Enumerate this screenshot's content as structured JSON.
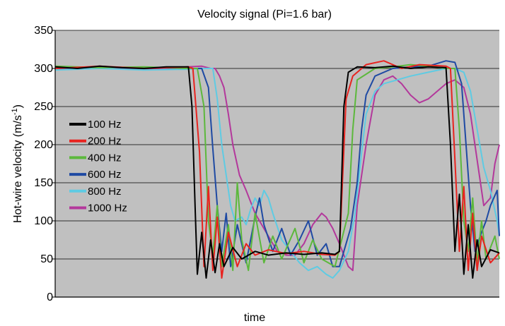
{
  "chart_data": {
    "type": "line",
    "title": "Velocity signal (Pi=1.6 bar)",
    "xlabel": "time",
    "ylabel": "Hot-wire velocity (m/s",
    "ylabel_sup": "-1",
    "ylabel_close": ")",
    "ylim": [
      0,
      350
    ],
    "xlim": [
      0,
      100
    ],
    "yticks": [
      "0",
      "50",
      "100",
      "150",
      "200",
      "250",
      "300",
      "350"
    ],
    "grid": true,
    "legend_position": "left",
    "series": [
      {
        "name": "100 Hz",
        "color": "#000000",
        "points": [
          [
            0,
            302
          ],
          [
            5,
            300
          ],
          [
            10,
            303
          ],
          [
            15,
            301
          ],
          [
            20,
            300
          ],
          [
            25,
            302
          ],
          [
            30,
            302
          ],
          [
            30.8,
            250
          ],
          [
            31.5,
            120
          ],
          [
            32,
            30
          ],
          [
            33,
            85
          ],
          [
            34,
            25
          ],
          [
            35,
            75
          ],
          [
            36,
            32
          ],
          [
            37,
            70
          ],
          [
            38,
            40
          ],
          [
            40,
            65
          ],
          [
            42,
            50
          ],
          [
            45,
            60
          ],
          [
            48,
            55
          ],
          [
            52,
            58
          ],
          [
            56,
            56
          ],
          [
            60,
            58
          ],
          [
            63,
            56
          ],
          [
            64,
            60
          ],
          [
            65,
            250
          ],
          [
            66,
            295
          ],
          [
            68,
            302
          ],
          [
            72,
            301
          ],
          [
            76,
            303
          ],
          [
            80,
            300
          ],
          [
            84,
            302
          ],
          [
            88,
            301
          ],
          [
            89,
            200
          ],
          [
            90,
            60
          ],
          [
            91,
            135
          ],
          [
            92,
            30
          ],
          [
            93,
            95
          ],
          [
            94,
            25
          ],
          [
            95,
            75
          ],
          [
            96,
            40
          ],
          [
            98,
            62
          ],
          [
            100,
            58
          ]
        ]
      },
      {
        "name": "200 Hz",
        "color": "#e8231f",
        "points": [
          [
            0,
            300
          ],
          [
            10,
            303
          ],
          [
            20,
            300
          ],
          [
            30,
            302
          ],
          [
            31,
            300
          ],
          [
            32.5,
            190
          ],
          [
            33.5,
            40
          ],
          [
            34.5,
            145
          ],
          [
            35.5,
            35
          ],
          [
            36.5,
            105
          ],
          [
            37.5,
            25
          ],
          [
            39,
            85
          ],
          [
            41,
            40
          ],
          [
            43,
            70
          ],
          [
            45,
            55
          ],
          [
            48,
            62
          ],
          [
            52,
            57
          ],
          [
            56,
            60
          ],
          [
            60,
            56
          ],
          [
            63,
            55
          ],
          [
            64,
            60
          ],
          [
            65.5,
            260
          ],
          [
            67,
            290
          ],
          [
            70,
            305
          ],
          [
            74,
            310
          ],
          [
            78,
            300
          ],
          [
            82,
            305
          ],
          [
            88,
            303
          ],
          [
            89,
            300
          ],
          [
            90,
            180
          ],
          [
            91,
            60
          ],
          [
            92,
            145
          ],
          [
            93,
            35
          ],
          [
            94,
            110
          ],
          [
            95,
            35
          ],
          [
            96,
            80
          ],
          [
            98,
            45
          ],
          [
            100,
            58
          ]
        ]
      },
      {
        "name": "400 Hz",
        "color": "#5cb83c",
        "points": [
          [
            0,
            303
          ],
          [
            10,
            301
          ],
          [
            20,
            302
          ],
          [
            30,
            300
          ],
          [
            32,
            300
          ],
          [
            33.5,
            250
          ],
          [
            34.5,
            100
          ],
          [
            35.5,
            55
          ],
          [
            36.5,
            120
          ],
          [
            37.5,
            40
          ],
          [
            39,
            95
          ],
          [
            40,
            35
          ],
          [
            41,
            150
          ],
          [
            42,
            75
          ],
          [
            43.5,
            35
          ],
          [
            45,
            110
          ],
          [
            47,
            45
          ],
          [
            49,
            80
          ],
          [
            51,
            50
          ],
          [
            54,
            90
          ],
          [
            56,
            45
          ],
          [
            58,
            75
          ],
          [
            60,
            50
          ],
          [
            63,
            40
          ],
          [
            66,
            110
          ],
          [
            67,
            220
          ],
          [
            68,
            285
          ],
          [
            72,
            300
          ],
          [
            76,
            302
          ],
          [
            80,
            305
          ],
          [
            84,
            303
          ],
          [
            88,
            300
          ],
          [
            90,
            300
          ],
          [
            91,
            220
          ],
          [
            92,
            100
          ],
          [
            93,
            60
          ],
          [
            94,
            130
          ],
          [
            95,
            45
          ],
          [
            96,
            100
          ],
          [
            97,
            50
          ],
          [
            99,
            80
          ],
          [
            100,
            50
          ]
        ]
      },
      {
        "name": "600 Hz",
        "color": "#1f4aa3",
        "points": [
          [
            0,
            300
          ],
          [
            10,
            302
          ],
          [
            20,
            301
          ],
          [
            30,
            300
          ],
          [
            33,
            300
          ],
          [
            34.5,
            275
          ],
          [
            35.5,
            195
          ],
          [
            36.5,
            120
          ],
          [
            37.5,
            60
          ],
          [
            38.5,
            110
          ],
          [
            39.5,
            40
          ],
          [
            41,
            95
          ],
          [
            43,
            45
          ],
          [
            45,
            105
          ],
          [
            46,
            130
          ],
          [
            47,
            95
          ],
          [
            49,
            60
          ],
          [
            51,
            90
          ],
          [
            53,
            55
          ],
          [
            55,
            75
          ],
          [
            57,
            100
          ],
          [
            59,
            55
          ],
          [
            61,
            70
          ],
          [
            62.5,
            40
          ],
          [
            64,
            40
          ],
          [
            66.5,
            90
          ],
          [
            68,
            150
          ],
          [
            69,
            220
          ],
          [
            70,
            265
          ],
          [
            72,
            290
          ],
          [
            76,
            300
          ],
          [
            80,
            302
          ],
          [
            84,
            303
          ],
          [
            88,
            310
          ],
          [
            90,
            308
          ],
          [
            91.5,
            280
          ],
          [
            92.5,
            200
          ],
          [
            93.5,
            120
          ],
          [
            94.5,
            60
          ],
          [
            96,
            85
          ],
          [
            97,
            100
          ],
          [
            98,
            120
          ],
          [
            99.5,
            140
          ],
          [
            100,
            80
          ]
        ]
      },
      {
        "name": "800 Hz",
        "color": "#5ecbe3",
        "points": [
          [
            0,
            298
          ],
          [
            10,
            300
          ],
          [
            20,
            298
          ],
          [
            30,
            299
          ],
          [
            34,
            300
          ],
          [
            35.5,
            300
          ],
          [
            36.5,
            260
          ],
          [
            37.5,
            200
          ],
          [
            38.5,
            160
          ],
          [
            39.5,
            120
          ],
          [
            40.5,
            100
          ],
          [
            42,
            105
          ],
          [
            43,
            95
          ],
          [
            44,
            115
          ],
          [
            45,
            130
          ],
          [
            46,
            120
          ],
          [
            47,
            140
          ],
          [
            48,
            130
          ],
          [
            49,
            110
          ],
          [
            51,
            75
          ],
          [
            53,
            60
          ],
          [
            55,
            45
          ],
          [
            57,
            35
          ],
          [
            59,
            40
          ],
          [
            61,
            30
          ],
          [
            62.5,
            25
          ],
          [
            64,
            35
          ],
          [
            66,
            60
          ],
          [
            67.5,
            110
          ],
          [
            69,
            190
          ],
          [
            70,
            240
          ],
          [
            72,
            270
          ],
          [
            74,
            280
          ],
          [
            77,
            285
          ],
          [
            80,
            290
          ],
          [
            84,
            295
          ],
          [
            88,
            300
          ],
          [
            90,
            300
          ],
          [
            92,
            295
          ],
          [
            93.5,
            270
          ],
          [
            95,
            220
          ],
          [
            96.5,
            170
          ],
          [
            98,
            140
          ],
          [
            99.5,
            100
          ],
          [
            100,
            80
          ]
        ]
      },
      {
        "name": "1000 Hz",
        "color": "#b3389b",
        "points": [
          [
            0,
            300
          ],
          [
            10,
            301
          ],
          [
            20,
            299
          ],
          [
            30,
            302
          ],
          [
            33,
            303
          ],
          [
            35,
            300
          ],
          [
            36,
            300
          ],
          [
            37,
            290
          ],
          [
            38,
            275
          ],
          [
            39,
            240
          ],
          [
            40,
            200
          ],
          [
            41.5,
            160
          ],
          [
            43,
            140
          ],
          [
            45,
            110
          ],
          [
            46.5,
            95
          ],
          [
            48,
            80
          ],
          [
            50,
            60
          ],
          [
            52,
            55
          ],
          [
            54,
            55
          ],
          [
            56,
            70
          ],
          [
            58,
            95
          ],
          [
            60,
            110
          ],
          [
            61,
            105
          ],
          [
            62.5,
            90
          ],
          [
            64,
            70
          ],
          [
            66,
            40
          ],
          [
            67,
            35
          ],
          [
            68,
            120
          ],
          [
            70,
            200
          ],
          [
            72,
            265
          ],
          [
            74,
            285
          ],
          [
            76,
            290
          ],
          [
            78,
            280
          ],
          [
            80,
            265
          ],
          [
            82,
            255
          ],
          [
            84,
            260
          ],
          [
            86,
            270
          ],
          [
            88,
            280
          ],
          [
            90,
            285
          ],
          [
            92,
            275
          ],
          [
            93.5,
            240
          ],
          [
            95,
            180
          ],
          [
            96.5,
            120
          ],
          [
            98,
            130
          ],
          [
            99,
            175
          ],
          [
            100,
            200
          ]
        ]
      }
    ]
  }
}
